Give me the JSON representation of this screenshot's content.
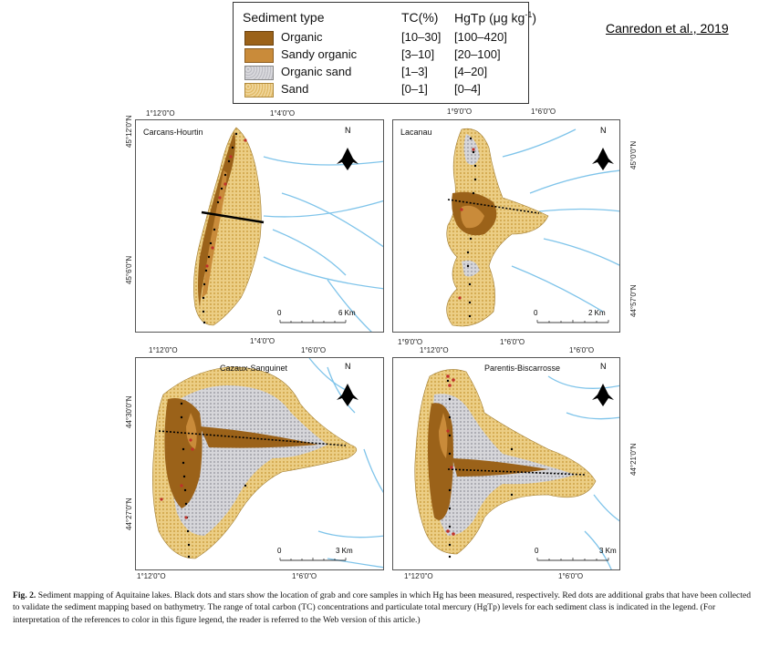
{
  "citation": "Canredon et al., 2019",
  "legend": {
    "header_type": "Sediment type",
    "header_tc": "TC(%)",
    "header_hg": "HgTp (μg kg",
    "header_hg_sup": "-1",
    "header_hg_close": ")",
    "items": [
      {
        "label": "Organic",
        "tc": "[10–30]",
        "hg": "[100–420]",
        "color": "#9b6219"
      },
      {
        "label": "Sandy organic",
        "tc": "[3–10]",
        "hg": "[20–100]",
        "color": "#c98b3a"
      },
      {
        "label": "Organic sand",
        "tc": "[1–3]",
        "hg": "[4–20]",
        "color": "#c8c8cc"
      },
      {
        "label": "Sand",
        "tc": "[0–1]",
        "hg": "[0–4]",
        "color": "#e6c272"
      }
    ]
  },
  "panels": {
    "carcans": {
      "title": "Carcans-Hourtin",
      "top_left": "1°12'0\"O",
      "top_right": "1°4'0\"O",
      "bottom": "1°4'0\"O",
      "left_top": "45°12'0\"N",
      "left_bottom": "45°6'0\"N",
      "scale_zero": "0",
      "scale_end": "6 Km",
      "north": "N"
    },
    "lacanau": {
      "title": "Lacanau",
      "top_left": "1°9'0\"O",
      "top_right": "1°6'0\"O",
      "bottom_left": "1°9'0\"O",
      "bottom_right": "1°6'0\"O",
      "right_top": "45°0'0\"N",
      "right_bottom": "44°57'0\"N",
      "scale_zero": "0",
      "scale_end": "2 Km",
      "north": "N"
    },
    "cazaux": {
      "title": "Cazaux-Sanguinet",
      "top_left": "1°12'0\"O",
      "top_right": "1°6'0\"O",
      "bottom_left": "1°12'0\"O",
      "bottom_right": "1°6'0\"O",
      "left_top": "44°30'0\"N",
      "left_bottom": "44°27'0\"N",
      "scale_zero": "0",
      "scale_end": "3 Km",
      "north": "N"
    },
    "parentis": {
      "title": "Parentis-Biscarrosse",
      "top_left": "1°12'0\"O",
      "top_right": "1°6'0\"O",
      "bottom_left": "1°12'0\"O",
      "bottom_right": "1°6'0\"O",
      "right": "44°21'0\"N",
      "scale_zero": "0",
      "scale_end": "3 Km",
      "north": "N"
    }
  },
  "caption": {
    "label": "Fig. 2.",
    "text": "Sediment mapping of Aquitaine lakes. Black dots and stars show the location of grab and core samples in which Hg has been measured, respectively. Red dots are additional grabs that have been collected to validate the sediment mapping based on bathymetry. The range of total carbon (TC) concentrations and particulate total mercury (HgTp) levels for each sediment class is indicated in the legend. (For interpretation of the references to color in this figure legend, the reader is referred to the Web version of this article.)"
  }
}
